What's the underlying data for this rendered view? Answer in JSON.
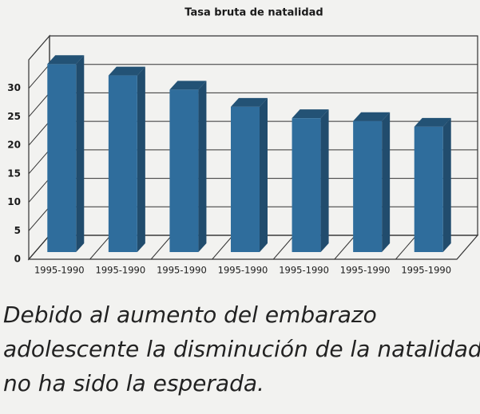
{
  "chart_data": {
    "type": "bar3d",
    "title": "Tasa bruta de natalidad",
    "categories": [
      "1995-1990",
      "1995-1990",
      "1995-1990",
      "1995-1990",
      "1995-1990",
      "1995-1990",
      "1995-1990"
    ],
    "values": [
      33,
      31,
      28.5,
      25.5,
      23.5,
      23,
      22
    ],
    "color": "#2f6d9c",
    "ylim": [
      0,
      35
    ],
    "yticks": [
      0,
      5,
      10,
      15,
      20,
      25,
      30
    ],
    "grid": true,
    "caption": [
      "Debido al aumento del embarazo",
      "adolescente la disminución de la natalidad",
      "no ha sido la esperada."
    ]
  }
}
